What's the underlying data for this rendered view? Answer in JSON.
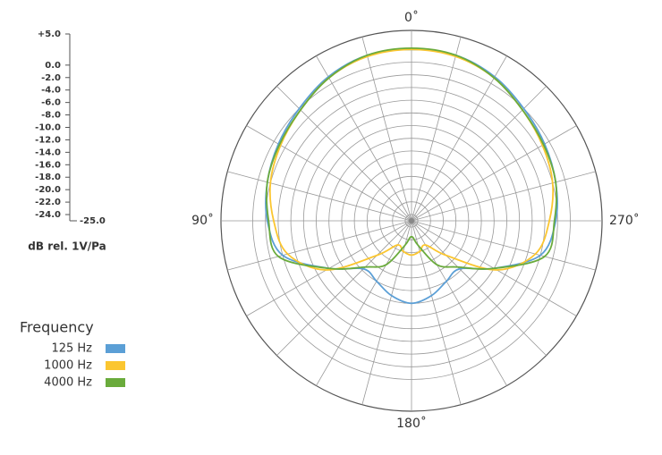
{
  "chart_data": {
    "type": "polar",
    "direction": "counterclockwise",
    "ylabel": "dB rel. 1V/Pa",
    "legend_title": "Frequency",
    "theta": [
      0,
      15,
      30,
      45,
      60,
      75,
      90,
      105,
      120,
      135,
      150,
      165,
      180,
      195,
      210,
      225,
      240,
      255,
      270,
      285,
      300,
      315,
      330,
      345
    ],
    "xticks": [
      {
        "value": 0,
        "label": "0˚"
      },
      {
        "value": 90,
        "label": "90˚"
      },
      {
        "value": 180,
        "label": "180˚"
      },
      {
        "value": 270,
        "label": "270˚"
      }
    ],
    "ylim": [
      -25,
      5
    ],
    "yticks": [
      {
        "value": 5,
        "label": "+5.0"
      },
      {
        "value": 0,
        "label": "0.0"
      },
      {
        "value": -2,
        "label": "-2.0"
      },
      {
        "value": -4,
        "label": "-4.0"
      },
      {
        "value": -6,
        "label": "-6.0"
      },
      {
        "value": -8,
        "label": "-8.0"
      },
      {
        "value": -10,
        "label": "-10.0"
      },
      {
        "value": -12,
        "label": "-12.0"
      },
      {
        "value": -14,
        "label": "-14.0"
      },
      {
        "value": -16,
        "label": "-16.0"
      },
      {
        "value": -18,
        "label": "-18.0"
      },
      {
        "value": -20,
        "label": "-20.0"
      },
      {
        "value": -22,
        "label": "-22.0"
      },
      {
        "value": -24,
        "label": "-24.0"
      },
      {
        "value": -25,
        "label": "-25.0"
      }
    ],
    "series": [
      {
        "name": "125 Hz",
        "color": "#5b9fd6",
        "values": [
          2,
          2,
          1.2,
          0,
          -0.8,
          -1.5,
          -2.3,
          -4,
          -10,
          -14.3,
          -14,
          -12.8,
          -12,
          -12.8,
          -14,
          -14.3,
          -10,
          -4,
          -2.3,
          -1.5,
          -0.8,
          0,
          1.2,
          2
        ]
      },
      {
        "name": "1000 Hz",
        "color": "#fbc630",
        "values": [
          2,
          1.8,
          1,
          -0.3,
          -1.2,
          -2,
          -3.3,
          -4.8,
          -9.5,
          -17.3,
          -20.6,
          -20,
          -19.6,
          -20,
          -20.6,
          -17.3,
          -9.5,
          -4.8,
          -3.3,
          -2,
          -1.2,
          -0.3,
          1,
          1.8
        ]
      },
      {
        "name": "4000 Hz",
        "color": "#6aab3c",
        "values": [
          2.2,
          2,
          1,
          -0.3,
          -1,
          -1.5,
          -2.5,
          -3.3,
          -10,
          -14.7,
          -17,
          -21,
          -22.5,
          -21,
          -17,
          -14.7,
          -10,
          -3.3,
          -2.5,
          -1.5,
          -1,
          -0.3,
          1,
          2
        ]
      }
    ]
  }
}
